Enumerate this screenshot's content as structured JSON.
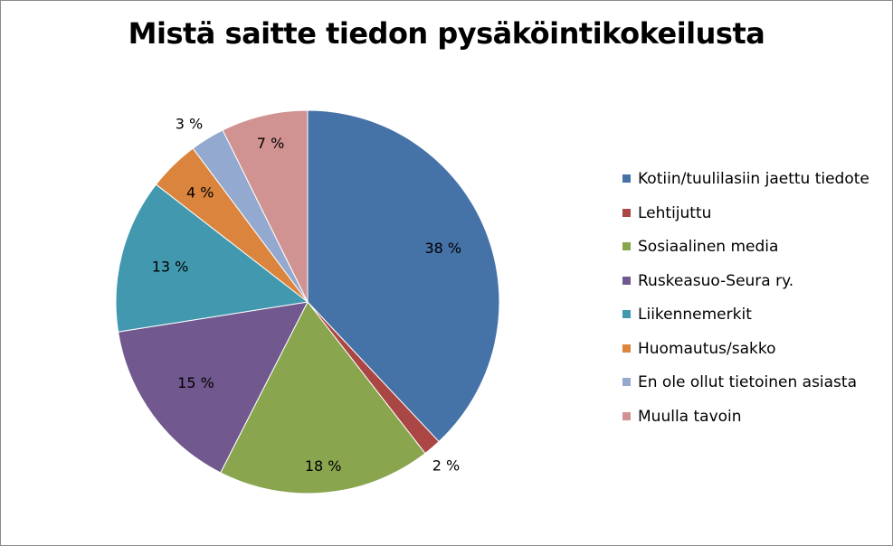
{
  "chart_data": {
    "type": "pie",
    "title": "Mistä saitte tiedon pysäköintikokeilusta",
    "start": "top-clockwise",
    "legend_position": "right",
    "slices": [
      {
        "name": "Kotiin/tuulilasiin jaettu tiedote",
        "value": 38,
        "label": "38 %",
        "color": "#4572a7"
      },
      {
        "name": "Lehtijuttu",
        "value": 1.5,
        "label": "2 %",
        "color": "#aa4643"
      },
      {
        "name": "Sosiaalinen media",
        "value": 18,
        "label": "18 %",
        "color": "#89a54e"
      },
      {
        "name": "Ruskeasuo-Seura ry.",
        "value": 15,
        "label": "15 %",
        "color": "#71588f"
      },
      {
        "name": "Liikennemerkit",
        "value": 13,
        "label": "13 %",
        "color": "#4198af"
      },
      {
        "name": "Huomautus/sakko",
        "value": 4.3,
        "label": "4 %",
        "color": "#db843d"
      },
      {
        "name": "En ole ollut tietoinen asiasta",
        "value": 2.9,
        "label": "3 %",
        "color": "#93a9cf"
      },
      {
        "name": "Muulla tavoin",
        "value": 7.3,
        "label": "7 %",
        "color": "#d19392"
      }
    ]
  }
}
